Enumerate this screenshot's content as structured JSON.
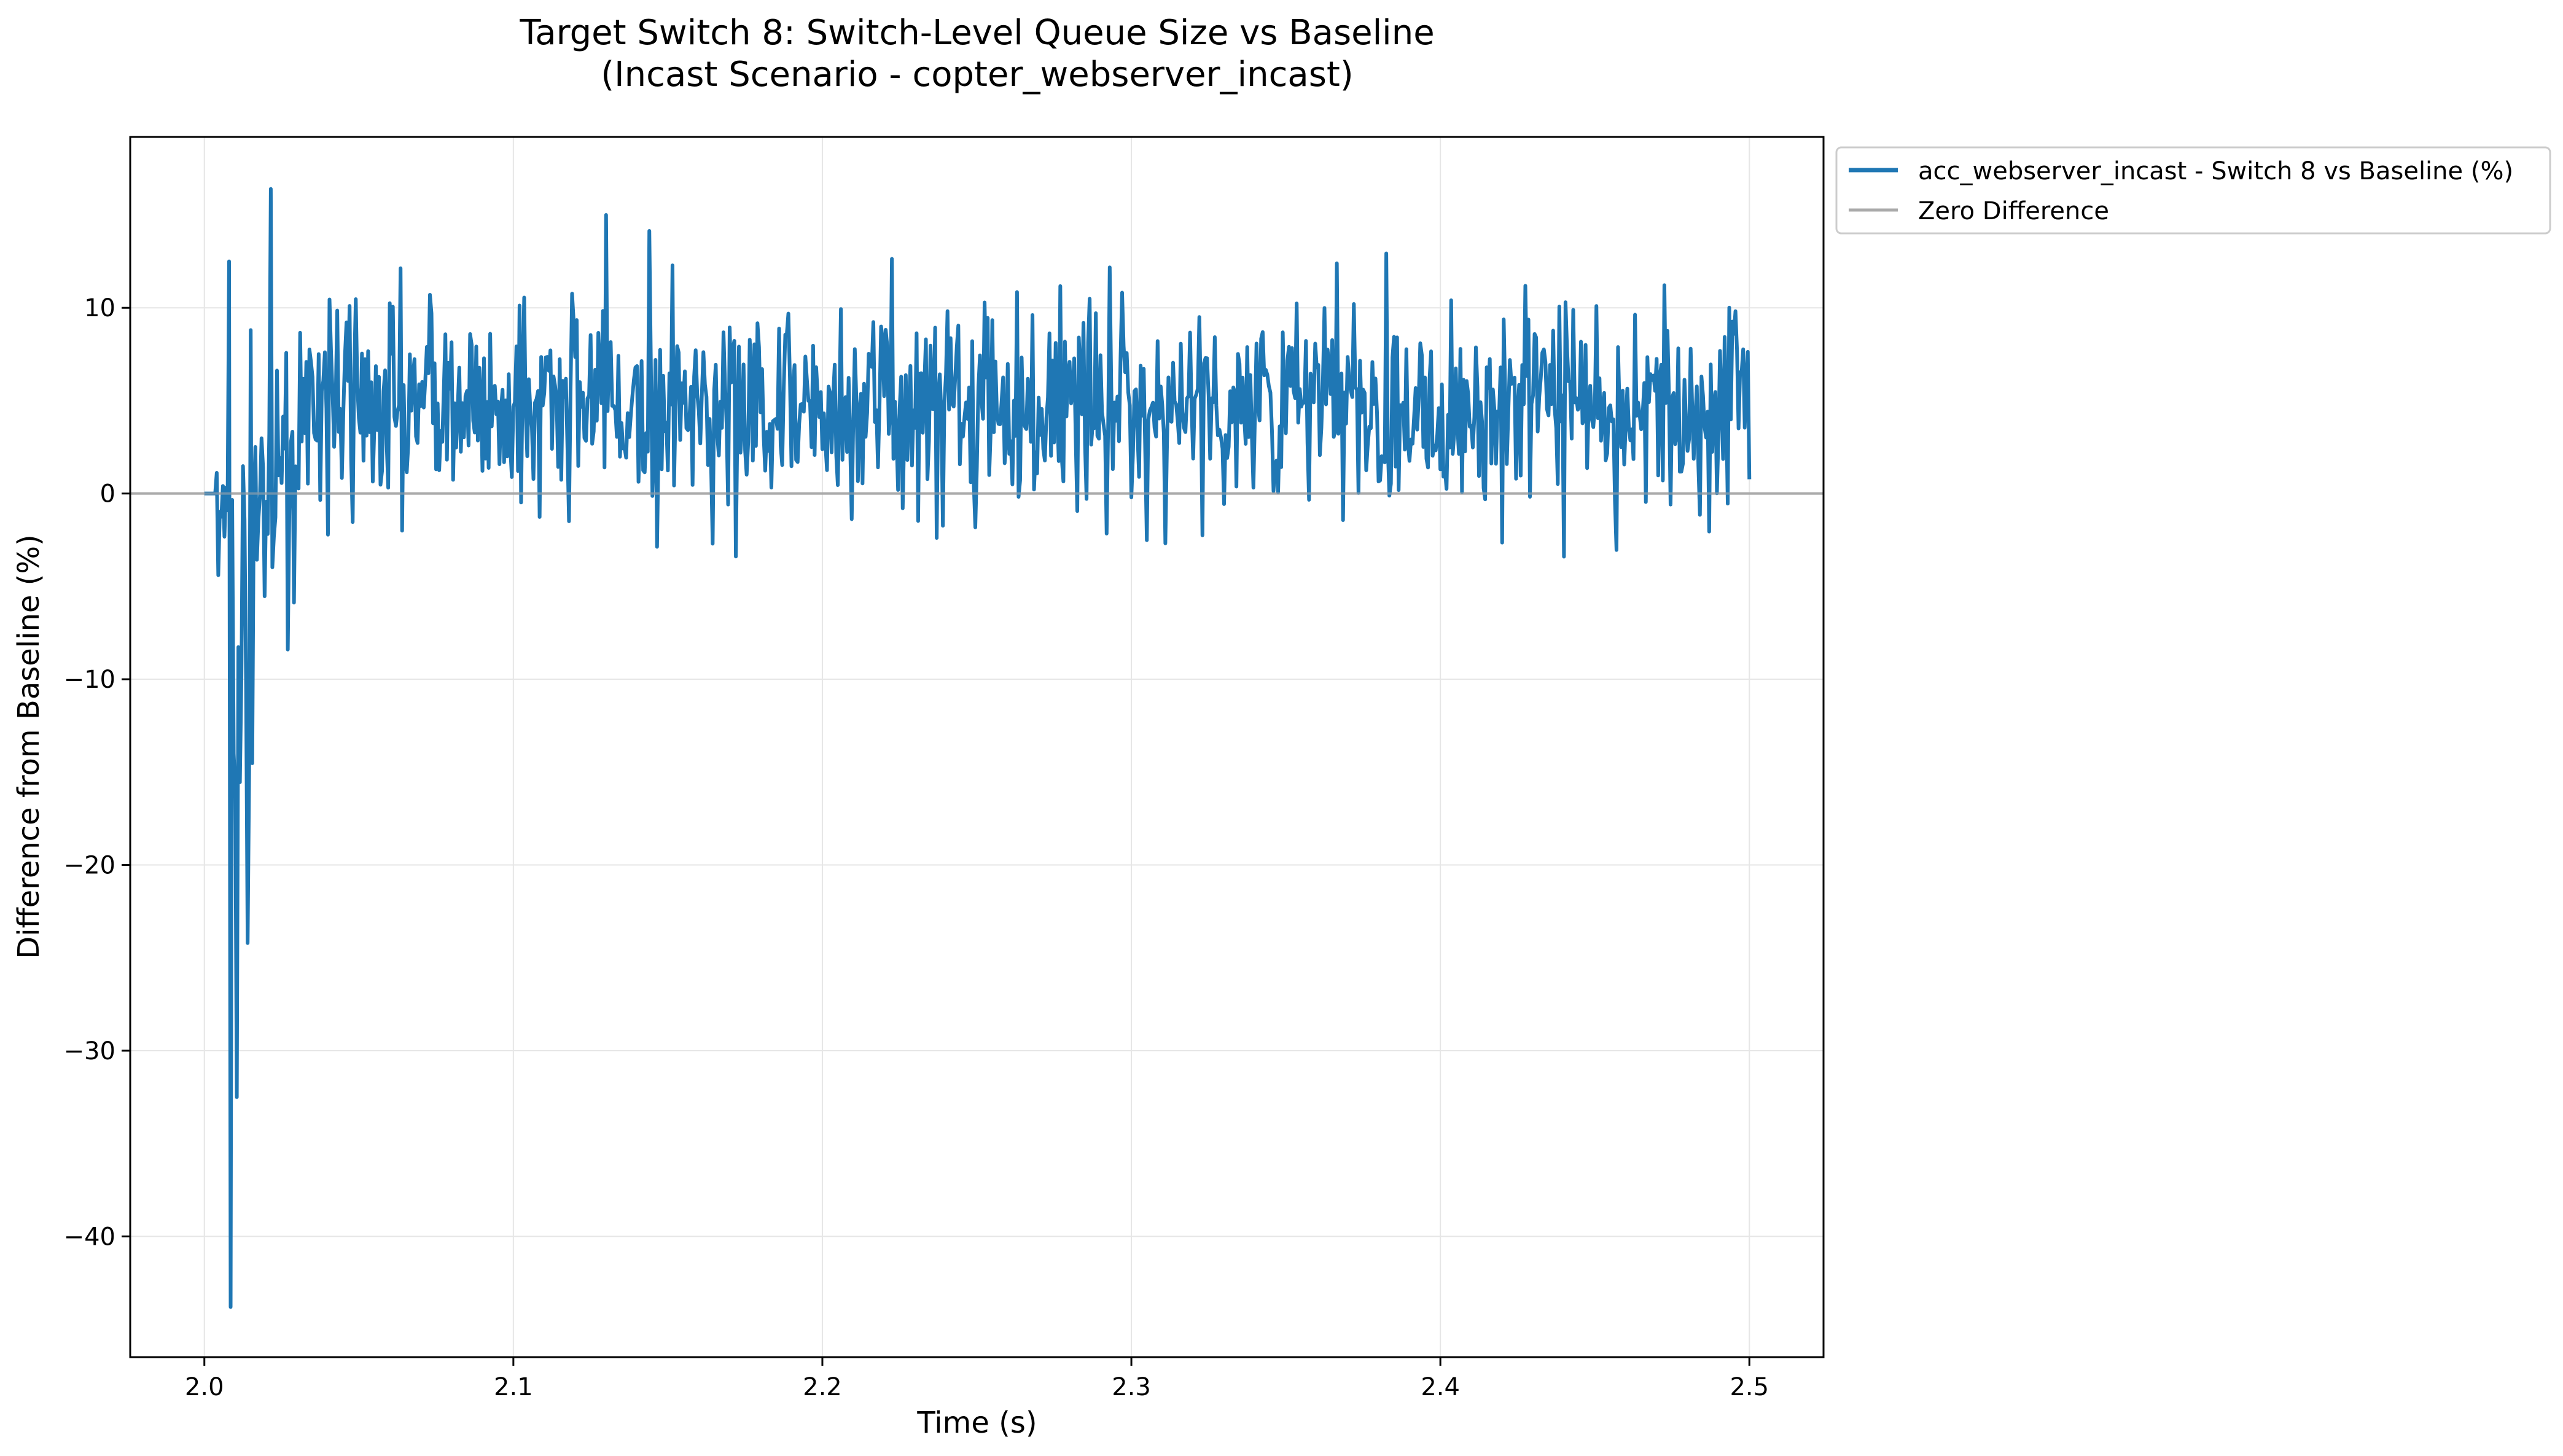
{
  "chart_data": {
    "type": "line",
    "title": "Target Switch 8: Switch-Level Queue Size vs Baseline",
    "subtitle": "(Incast Scenario - copter_webserver_incast)",
    "xlabel": "Time (s)",
    "ylabel": "Difference from Baseline (%)",
    "xlim": [
      1.976,
      2.524
    ],
    "ylim": [
      -46.5,
      19.2
    ],
    "x_ticks": [
      2.0,
      2.1,
      2.2,
      2.3,
      2.4,
      2.5
    ],
    "x_tick_labels": [
      "2.0",
      "2.1",
      "2.2",
      "2.3",
      "2.4",
      "2.5"
    ],
    "y_ticks": [
      -40,
      -30,
      -20,
      -10,
      0,
      10
    ],
    "y_tick_labels": [
      "−40",
      "−30",
      "−20",
      "−10",
      "0",
      "10"
    ],
    "grid": true,
    "legend_position": "outside-top-right",
    "series": [
      {
        "name": "acc_webserver_incast - Switch 8 vs Baseline (%)",
        "color": "#1f77b4",
        "x_range": [
          2.0,
          2.5
        ],
        "sample_interval": 0.0005,
        "flat_until": 2.004,
        "settling_until": 2.035,
        "steady_mean": 4.8,
        "steady_min": -3.5,
        "steady_max": 15.0,
        "extremes": [
          {
            "x": 2.0045,
            "y": 3.8
          },
          {
            "x": 2.0047,
            "y": -4.4
          },
          {
            "x": 2.008,
            "y": 12.5
          },
          {
            "x": 2.0085,
            "y": -43.8
          },
          {
            "x": 2.0095,
            "y": -14.0
          },
          {
            "x": 2.0105,
            "y": -32.5
          },
          {
            "x": 2.012,
            "y": -9.8
          },
          {
            "x": 2.015,
            "y": 8.8
          },
          {
            "x": 2.0215,
            "y": 16.4
          },
          {
            "x": 2.027,
            "y": -8.4
          },
          {
            "x": 2.13,
            "y": 15.0
          },
          {
            "x": 2.44,
            "y": -3.4
          }
        ]
      },
      {
        "name": "Zero Difference",
        "color": "#aaaaaa",
        "y": 0
      }
    ]
  }
}
